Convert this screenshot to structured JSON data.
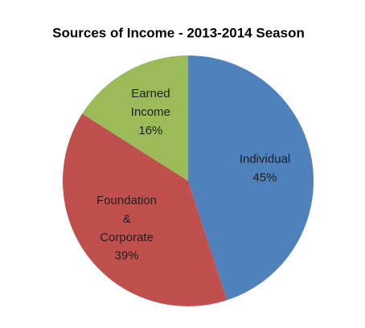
{
  "chart_data": {
    "type": "pie",
    "title": "Sources of Income - 2013-2014 Season",
    "categories": [
      "Individual",
      "Foundation & Corporate",
      "Earned Income"
    ],
    "values": [
      45,
      39,
      16
    ],
    "value_labels": [
      "45%",
      "39%",
      "16%"
    ],
    "colors": [
      "#4f81bd",
      "#c0504d",
      "#9bbb59"
    ]
  }
}
